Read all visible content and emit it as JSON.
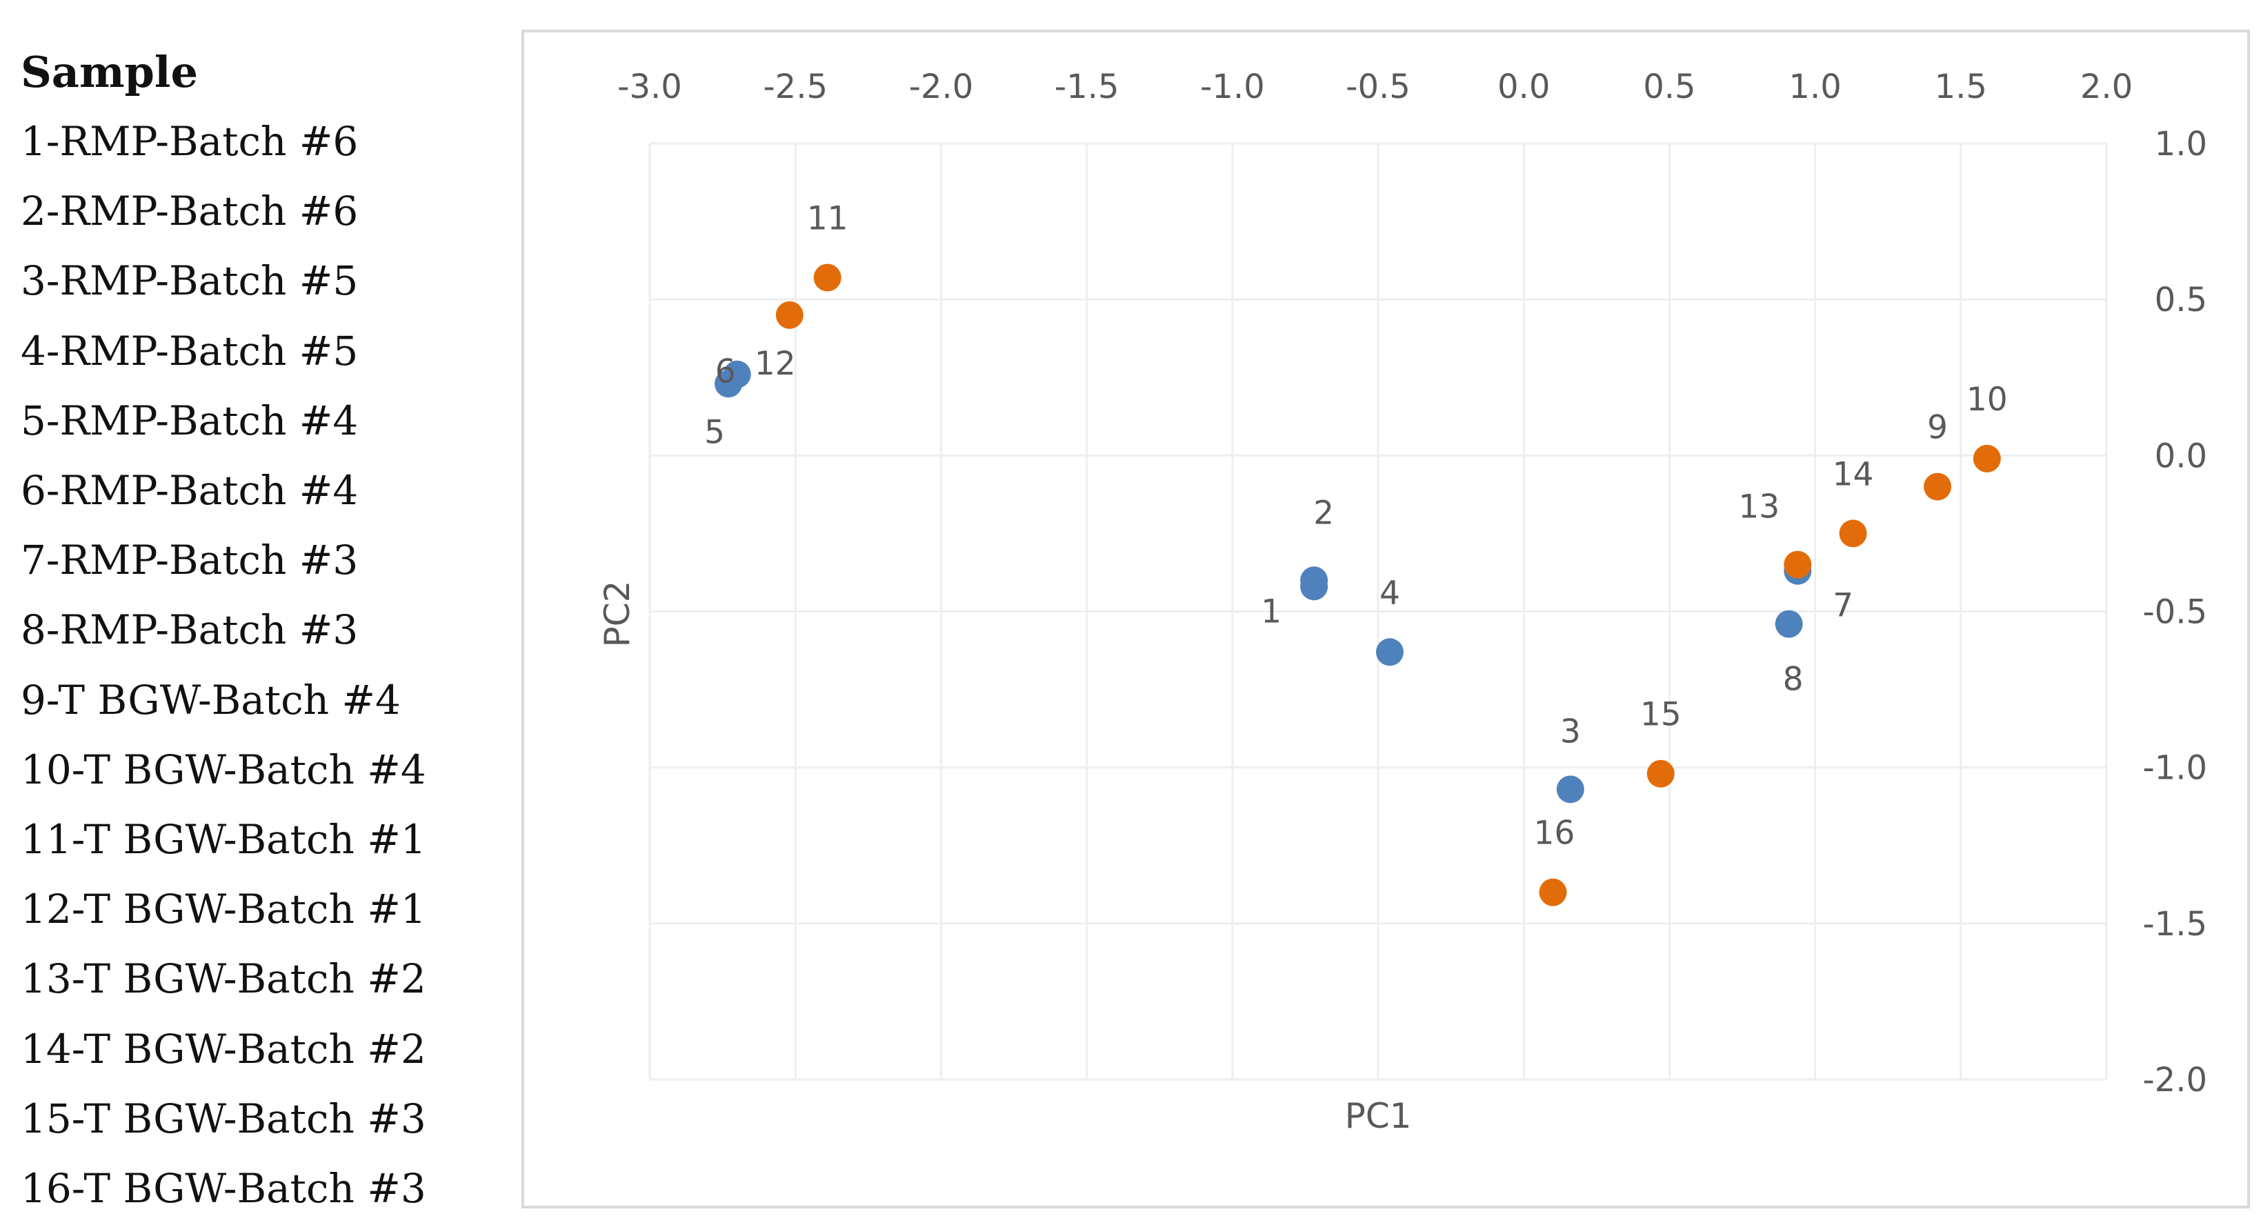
{
  "legend": {
    "title": "Sample",
    "items": [
      "1-RMP-Batch #6",
      "2-RMP-Batch #6",
      "3-RMP-Batch #5",
      "4-RMP-Batch #5",
      "5-RMP-Batch #4",
      "6-RMP-Batch #4",
      "7-RMP-Batch #3",
      "8-RMP-Batch #3",
      "9-T BGW-Batch #4",
      "10-T BGW-Batch #4",
      "11-T BGW-Batch #1",
      "12-T BGW-Batch #1",
      "13-T BGW-Batch #2",
      "14-T BGW-Batch #2",
      "15-T BGW-Batch #3",
      "16-T BGW-Batch #3"
    ]
  },
  "colors": {
    "rmp": "#4f81bd",
    "tbgw": "#e36c0a",
    "grid": "#eeeeee",
    "frame": "#d9d9d9"
  },
  "chart_data": {
    "type": "scatter",
    "title": "",
    "xlabel": "PC1",
    "ylabel": "PC2",
    "xlim": [
      -3.0,
      2.0
    ],
    "ylim": [
      -2.0,
      1.0
    ],
    "x_ticks": [
      "-3.0",
      "-2.5",
      "-2.0",
      "-1.5",
      "-1.0",
      "-0.5",
      "0.0",
      "0.5",
      "1.0",
      "1.5",
      "2.0"
    ],
    "y_ticks": [
      "1.0",
      "0.5",
      "0.0",
      "-0.5",
      "-1.0",
      "-1.5",
      "-2.0"
    ],
    "series": [
      {
        "name": "RMP",
        "color": "#4f81bd",
        "points": [
          {
            "label": "1",
            "x": -0.72,
            "y": -0.42
          },
          {
            "label": "2",
            "x": -0.72,
            "y": -0.4
          },
          {
            "label": "3",
            "x": 0.16,
            "y": -1.07
          },
          {
            "label": "4",
            "x": -0.46,
            "y": -0.63
          },
          {
            "label": "5",
            "x": -2.73,
            "y": 0.23
          },
          {
            "label": "6",
            "x": -2.7,
            "y": 0.26
          },
          {
            "label": "7",
            "x": 0.94,
            "y": -0.37
          },
          {
            "label": "8",
            "x": 0.91,
            "y": -0.54
          }
        ]
      },
      {
        "name": "T BGW",
        "color": "#e36c0a",
        "points": [
          {
            "label": "9",
            "x": 1.42,
            "y": -0.1
          },
          {
            "label": "10",
            "x": 1.59,
            "y": -0.01
          },
          {
            "label": "11",
            "x": -2.39,
            "y": 0.57
          },
          {
            "label": "12",
            "x": -2.52,
            "y": 0.45
          },
          {
            "label": "13",
            "x": 0.94,
            "y": -0.35
          },
          {
            "label": "14",
            "x": 1.13,
            "y": -0.25
          },
          {
            "label": "15",
            "x": 0.47,
            "y": -1.02
          },
          {
            "label": "16",
            "x": 0.1,
            "y": -1.4
          }
        ]
      }
    ]
  }
}
